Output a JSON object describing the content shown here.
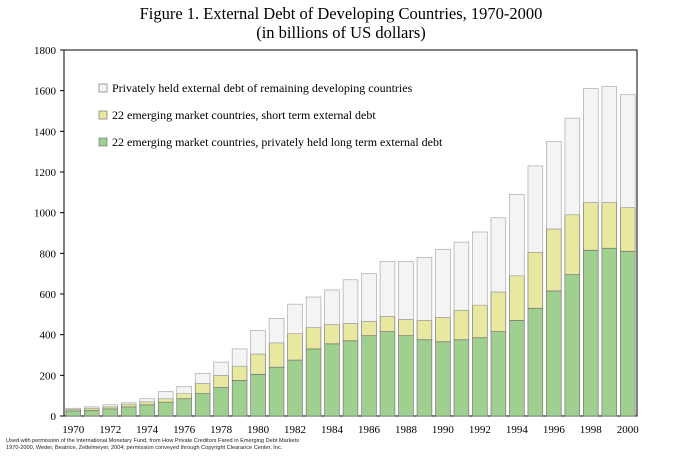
{
  "chart_data": {
    "type": "bar",
    "stacked": true,
    "title": "Figure 1. External Debt of Developing Countries, 1970-2000",
    "subtitle": "(in billions of US dollars)",
    "xlabel": "",
    "ylabel": "",
    "ylim": [
      0,
      1800
    ],
    "yticks": [
      0,
      200,
      400,
      600,
      800,
      1000,
      1200,
      1400,
      1600,
      1800
    ],
    "categories": [
      1970,
      1971,
      1972,
      1973,
      1974,
      1975,
      1976,
      1977,
      1978,
      1979,
      1980,
      1981,
      1982,
      1983,
      1984,
      1985,
      1986,
      1987,
      1988,
      1989,
      1990,
      1991,
      1992,
      1993,
      1994,
      1995,
      1996,
      1997,
      1998,
      1999,
      2000
    ],
    "xtick_labels": [
      "1970",
      "1972",
      "1974",
      "1976",
      "1978",
      "1980",
      "1982",
      "1984",
      "1986",
      "1988",
      "1990",
      "1992",
      "1994",
      "1996",
      "1998",
      "2000"
    ],
    "legend_placement": "top-left",
    "grid": false,
    "series": [
      {
        "name": "22 emerging market countries, privately held long term external debt",
        "color": "#a0d090",
        "values": [
          25,
          28,
          35,
          45,
          55,
          68,
          85,
          110,
          140,
          175,
          205,
          240,
          275,
          330,
          355,
          370,
          395,
          415,
          395,
          375,
          365,
          375,
          385,
          415,
          470,
          530,
          615,
          695,
          815,
          825,
          810
        ]
      },
      {
        "name": "22 emerging market countries, short term external debt",
        "color": "#e8e8a0",
        "values": [
          7,
          10,
          10,
          13,
          15,
          17,
          25,
          50,
          60,
          70,
          100,
          120,
          130,
          105,
          95,
          85,
          70,
          75,
          80,
          95,
          120,
          145,
          160,
          195,
          220,
          275,
          305,
          295,
          235,
          225,
          215
        ]
      },
      {
        "name": "Privately held external debt of remaining developing countries",
        "color": "#f4f4f4",
        "values": [
          6,
          7,
          10,
          7,
          15,
          35,
          35,
          50,
          65,
          85,
          115,
          120,
          145,
          150,
          170,
          215,
          235,
          270,
          285,
          310,
          335,
          335,
          360,
          365,
          400,
          425,
          430,
          475,
          560,
          570,
          555
        ]
      }
    ]
  },
  "footnote": [
    "Used with permission of the International Monetary Fund, from How Private Creditors Fared in Emerging Debt Markets",
    "1970-2000, Weder, Beatrice, Zettelmeyer, 2004; permission conveyed through Copyright Clearance Center, Inc."
  ]
}
